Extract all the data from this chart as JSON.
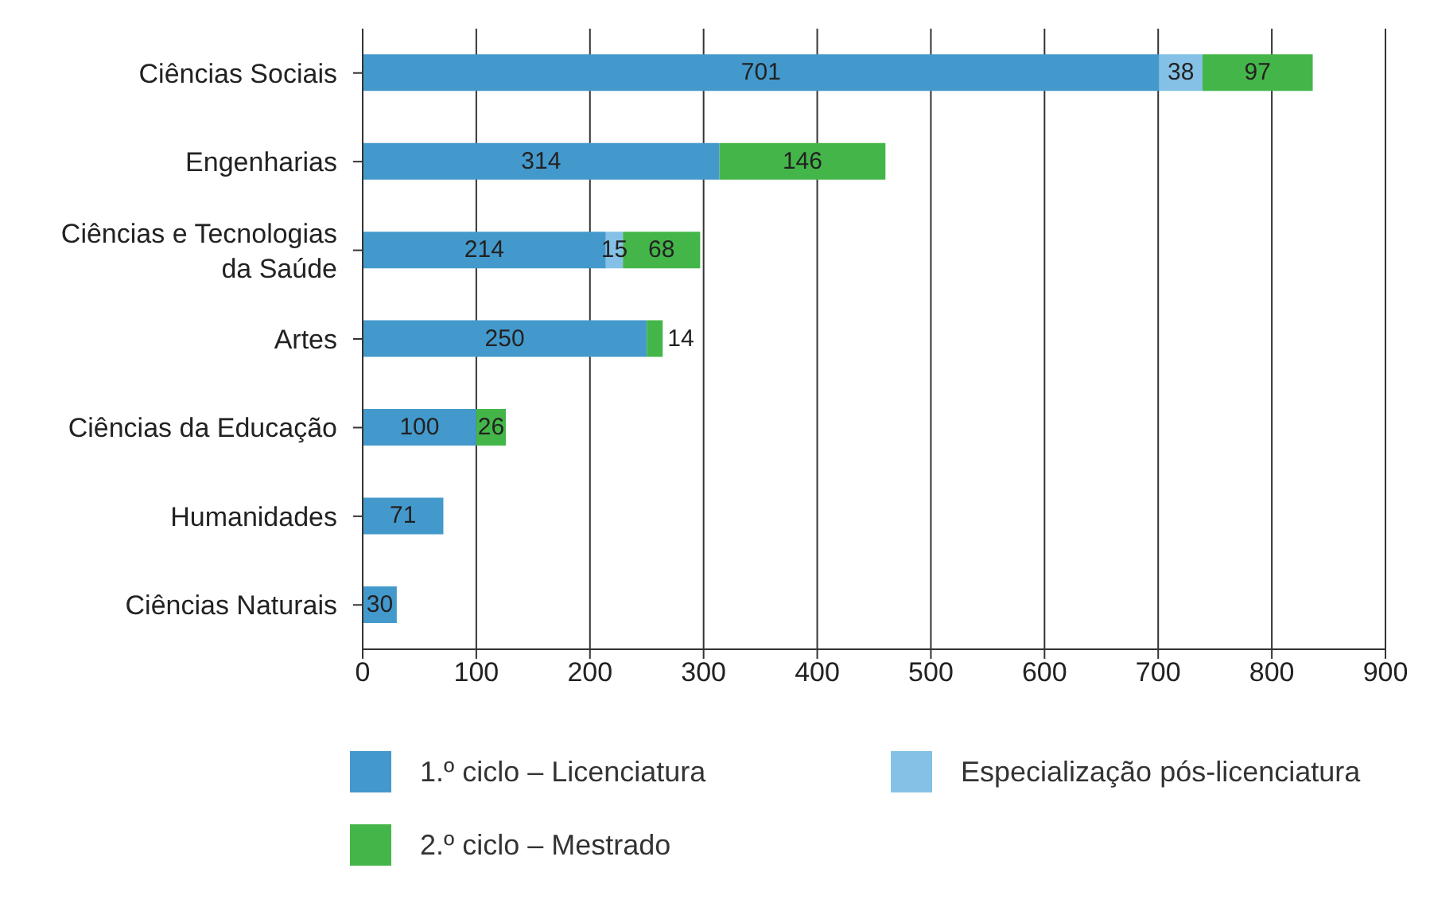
{
  "chart_data": {
    "type": "bar",
    "orientation": "horizontal",
    "stacked": true,
    "data_labels": true,
    "grid": "x",
    "legend": "bottom",
    "categories": [
      "Ciências Sociais",
      "Engenharias",
      "Ciências e Tecnologias da Saúde",
      "Artes",
      "Ciências da Educação",
      "Humanidades",
      "Ciências Naturais"
    ],
    "series": [
      {
        "name": "1.º ciclo – Licenciatura",
        "color": "#4499cc",
        "values": [
          701,
          314,
          214,
          250,
          100,
          71,
          30
        ]
      },
      {
        "name": "Especialização pós-licenciatura",
        "color": "#85c1e6",
        "values": [
          38,
          null,
          15,
          null,
          null,
          null,
          null
        ]
      },
      {
        "name": "2.º ciclo – Mestrado",
        "color": "#44b649",
        "values": [
          97,
          146,
          68,
          14,
          26,
          null,
          null
        ]
      }
    ],
    "xlim": [
      0,
      900
    ],
    "xticks": [
      0,
      100,
      200,
      300,
      400,
      500,
      600,
      700,
      800,
      900
    ]
  }
}
